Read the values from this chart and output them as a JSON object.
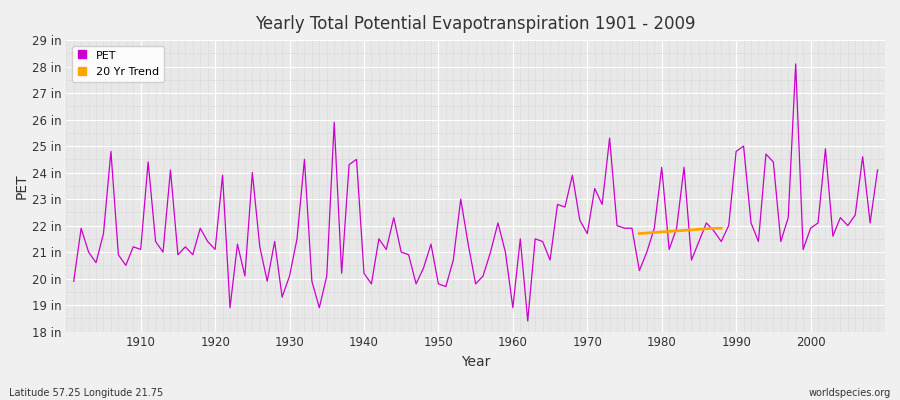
{
  "title": "Yearly Total Potential Evapotranspiration 1901 - 2009",
  "xlabel": "Year",
  "ylabel": "PET",
  "bg_color": "#f0f0f0",
  "plot_bg_color": "#e8e8e8",
  "pet_color": "#cc00cc",
  "trend_color": "#ffa500",
  "years": [
    1901,
    1902,
    1903,
    1904,
    1905,
    1906,
    1907,
    1908,
    1909,
    1910,
    1911,
    1912,
    1913,
    1914,
    1915,
    1916,
    1917,
    1918,
    1919,
    1920,
    1921,
    1922,
    1923,
    1924,
    1925,
    1926,
    1927,
    1928,
    1929,
    1930,
    1931,
    1932,
    1933,
    1934,
    1935,
    1936,
    1937,
    1938,
    1939,
    1940,
    1941,
    1942,
    1943,
    1944,
    1945,
    1946,
    1947,
    1948,
    1949,
    1950,
    1951,
    1952,
    1953,
    1954,
    1955,
    1956,
    1957,
    1958,
    1959,
    1960,
    1961,
    1962,
    1963,
    1964,
    1965,
    1966,
    1967,
    1968,
    1969,
    1970,
    1971,
    1972,
    1973,
    1974,
    1975,
    1976,
    1977,
    1978,
    1979,
    1980,
    1981,
    1982,
    1983,
    1984,
    1985,
    1986,
    1987,
    1988,
    1989,
    1990,
    1991,
    1992,
    1993,
    1994,
    1995,
    1996,
    1997,
    1998,
    1999,
    2000,
    2001,
    2002,
    2003,
    2004,
    2005,
    2006,
    2007,
    2008,
    2009
  ],
  "pet_values": [
    19.9,
    21.9,
    21.0,
    20.6,
    21.7,
    24.8,
    20.9,
    20.5,
    21.2,
    21.1,
    24.4,
    21.4,
    21.0,
    24.1,
    20.9,
    21.2,
    20.9,
    21.9,
    21.4,
    21.1,
    23.9,
    18.9,
    21.3,
    20.1,
    24.0,
    21.2,
    19.9,
    21.4,
    19.3,
    20.1,
    21.5,
    24.5,
    19.9,
    18.9,
    20.1,
    25.9,
    20.2,
    24.3,
    24.5,
    20.2,
    19.8,
    21.5,
    21.1,
    22.3,
    21.0,
    20.9,
    19.8,
    20.4,
    21.3,
    19.8,
    19.7,
    20.7,
    23.0,
    21.3,
    19.8,
    20.1,
    21.0,
    22.1,
    21.0,
    18.9,
    21.5,
    18.4,
    21.5,
    21.4,
    20.7,
    22.8,
    22.7,
    23.9,
    22.2,
    21.7,
    23.4,
    22.8,
    25.3,
    22.0,
    21.9,
    21.9,
    20.3,
    21.0,
    21.9,
    24.2,
    21.1,
    21.9,
    24.2,
    20.7,
    21.4,
    22.1,
    21.8,
    21.4,
    22.0,
    24.8,
    25.0,
    22.1,
    21.4,
    24.7,
    24.4,
    21.4,
    22.3,
    28.1,
    21.1,
    21.9,
    22.1,
    24.9,
    21.6,
    22.3,
    22.0,
    22.4,
    24.6,
    22.1,
    24.1
  ],
  "trend_years": [
    1977,
    1978,
    1979,
    1980,
    1981,
    1982,
    1983,
    1984,
    1985,
    1986,
    1987,
    1988
  ],
  "trend_values": [
    21.7,
    21.72,
    21.74,
    21.76,
    21.78,
    21.8,
    21.82,
    21.84,
    21.86,
    21.88,
    21.9,
    21.9
  ],
  "ylim": [
    18,
    29
  ],
  "yticks": [
    18,
    19,
    20,
    21,
    22,
    23,
    24,
    25,
    26,
    27,
    28,
    29
  ],
  "xlim": [
    1900,
    2010
  ],
  "xticks": [
    1910,
    1920,
    1930,
    1940,
    1950,
    1960,
    1970,
    1980,
    1990,
    2000
  ],
  "major_grid_color": "#ffffff",
  "minor_grid_color": "#d8d8d8",
  "legend_facecolor": "#ffffff",
  "font_color": "#333333",
  "bottom_left_text": "Latitude 57.25 Longitude 21.75",
  "bottom_right_text": "worldspecies.org"
}
